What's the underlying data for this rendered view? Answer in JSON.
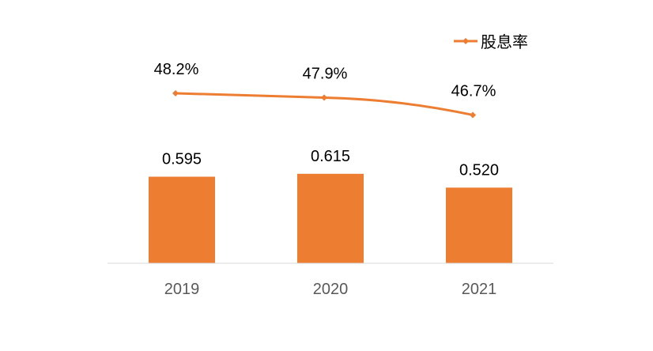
{
  "chart_data": {
    "type": "bar",
    "categories": [
      "2019",
      "2020",
      "2021"
    ],
    "values": [
      0.595,
      0.615,
      0.52
    ],
    "value_labels": [
      "0.595",
      "0.615",
      "0.520"
    ],
    "line_series": {
      "name": "股息率",
      "values": [
        48.2,
        47.9,
        46.7
      ],
      "labels": [
        "48.2%",
        "47.9%",
        "46.7%"
      ]
    },
    "ylim": [
      0,
      0.7
    ],
    "line_ylim": [
      42,
      50
    ],
    "legend_position": "top-right",
    "grid": false,
    "colors": {
      "bar": "#ED7D31",
      "line": "#ED7D31",
      "axis": "#D9D9D9",
      "tick": "#595959"
    }
  }
}
